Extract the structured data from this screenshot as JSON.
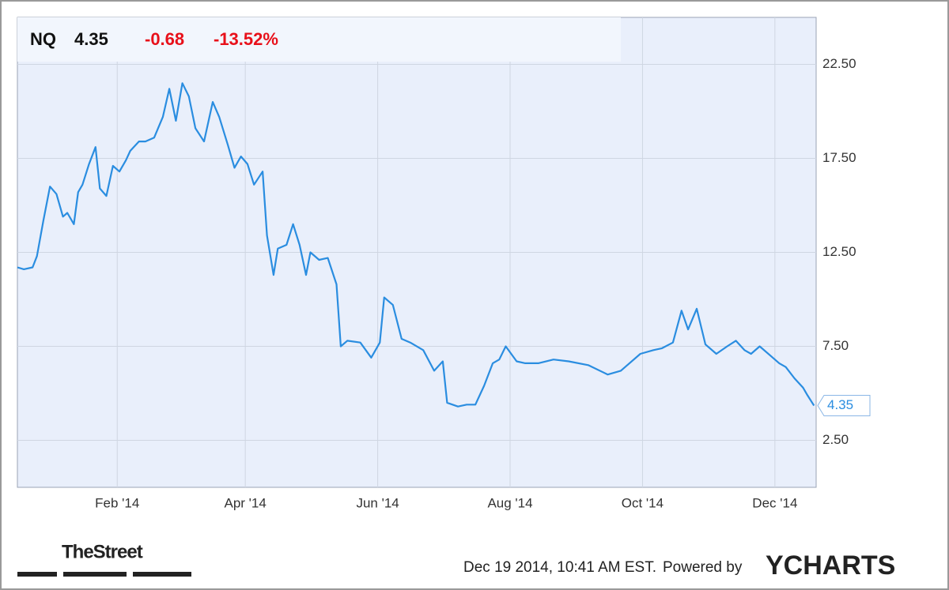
{
  "chart_data": {
    "type": "line",
    "ticker": "NQ",
    "price": "4.35",
    "change": "-0.68",
    "change_pct": "-13.52%",
    "timestamp": "Dec 19 2014, 10:41 AM EST.",
    "powered_by": "Powered by",
    "brand": "YCHARTS",
    "source": "TheStreet",
    "xlim": [
      -14,
      354
    ],
    "xticks": [
      {
        "value": 32,
        "label": "Feb '14"
      },
      {
        "value": 91,
        "label": "Apr '14"
      },
      {
        "value": 152,
        "label": "Jun '14"
      },
      {
        "value": 213,
        "label": "Aug '14"
      },
      {
        "value": 274,
        "label": "Oct '14"
      },
      {
        "value": 335,
        "label": "Dec '14"
      }
    ],
    "ylim": [
      0,
      25
    ],
    "yticks": [
      {
        "value": 2.5,
        "label": "2.50"
      },
      {
        "value": 7.5,
        "label": "7.50"
      },
      {
        "value": 12.5,
        "label": "12.50"
      },
      {
        "value": 17.5,
        "label": "17.50"
      },
      {
        "value": 22.5,
        "label": "22.50"
      }
    ],
    "grid": true,
    "x": [
      -14,
      -11,
      -7,
      -5,
      -2,
      1,
      4,
      7,
      9,
      12,
      14,
      16,
      19,
      22,
      24,
      27,
      30,
      33,
      36,
      38,
      42,
      45,
      49,
      53,
      56,
      59,
      62,
      65,
      68,
      72,
      76,
      79,
      83,
      86,
      89,
      92,
      95,
      99,
      101,
      104,
      106,
      110,
      113,
      116,
      119,
      121,
      125,
      129,
      133,
      135,
      138,
      144,
      149,
      153,
      155,
      159,
      163,
      167,
      173,
      178,
      182,
      184,
      189,
      193,
      197,
      201,
      205,
      208,
      211,
      216,
      220,
      226,
      233,
      240,
      249,
      258,
      264,
      267,
      273,
      279,
      283,
      288,
      292,
      295,
      299,
      303,
      308,
      313,
      317,
      321,
      324,
      328,
      333,
      337,
      340,
      344,
      348,
      350,
      353
    ],
    "series": [
      {
        "name": "NQ",
        "color": "#2a8de0",
        "values": [
          11.7,
          11.6,
          11.7,
          12.3,
          14.2,
          16.0,
          15.6,
          14.4,
          14.6,
          14.0,
          15.7,
          16.1,
          17.2,
          18.1,
          15.9,
          15.5,
          17.1,
          16.8,
          17.4,
          17.9,
          18.4,
          18.4,
          18.6,
          19.7,
          21.2,
          19.5,
          21.5,
          20.8,
          19.1,
          18.4,
          20.5,
          19.7,
          18.2,
          17.0,
          17.6,
          17.2,
          16.1,
          16.8,
          13.4,
          11.3,
          12.7,
          12.9,
          14.0,
          12.9,
          11.3,
          12.5,
          12.1,
          12.2,
          10.8,
          7.5,
          7.8,
          7.7,
          6.9,
          7.7,
          10.1,
          9.7,
          7.9,
          7.7,
          7.3,
          6.2,
          6.7,
          4.5,
          4.3,
          4.4,
          4.4,
          5.4,
          6.6,
          6.8,
          7.5,
          6.7,
          6.6,
          6.6,
          6.8,
          6.7,
          6.5,
          6.0,
          6.2,
          6.5,
          7.1,
          7.3,
          7.4,
          7.7,
          9.4,
          8.4,
          9.5,
          7.6,
          7.1,
          7.5,
          7.8,
          7.3,
          7.1,
          7.5,
          7.0,
          6.6,
          6.4,
          5.8,
          5.3,
          4.9,
          4.35
        ]
      }
    ]
  }
}
